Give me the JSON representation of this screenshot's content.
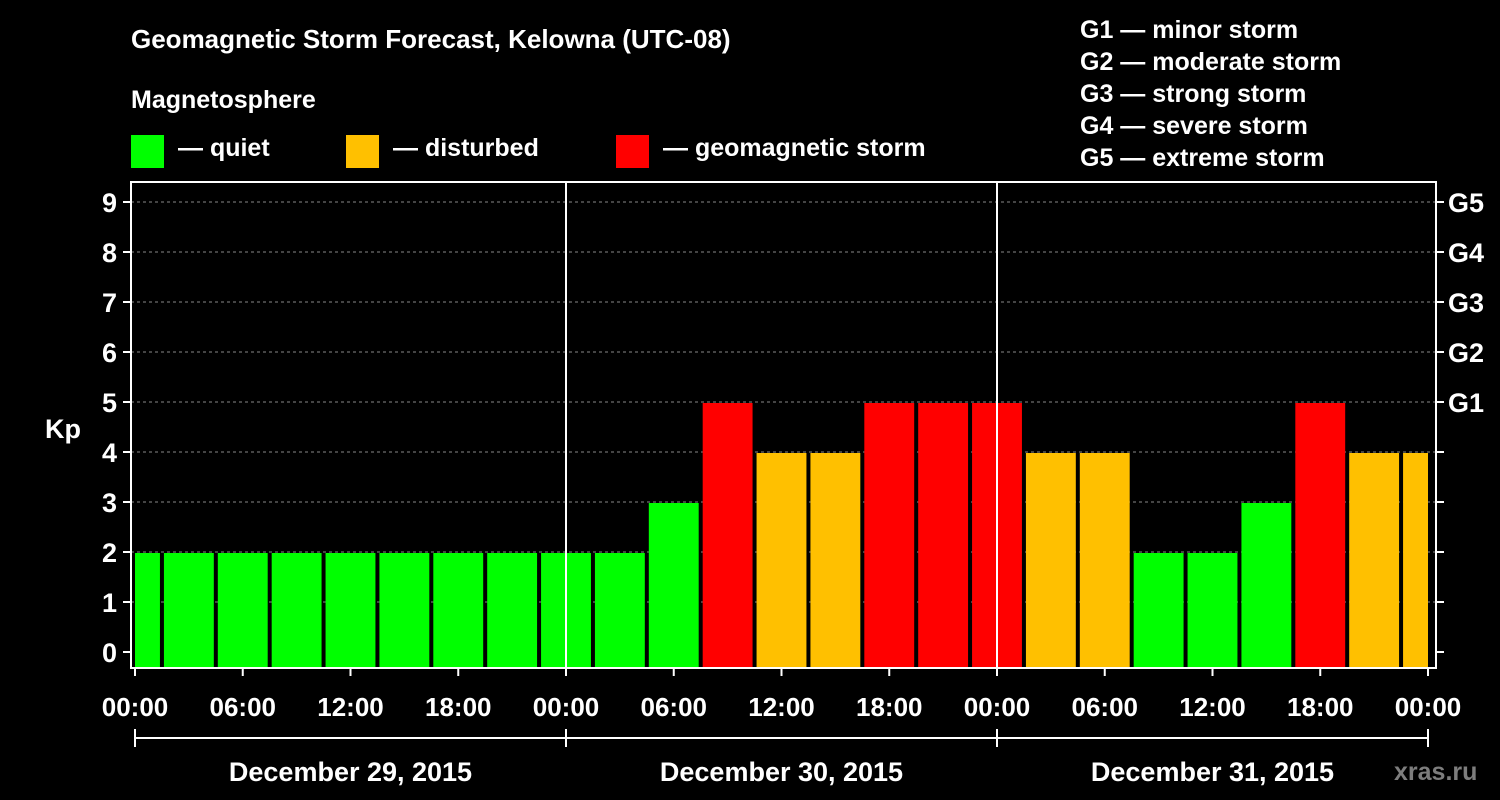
{
  "header": {
    "title": "Geomagnetic Storm Forecast, Kelowna (UTC-08)",
    "magnetosphere_heading": "Magnetosphere"
  },
  "legend": [
    {
      "label": "— quiet",
      "color": "#00ff00"
    },
    {
      "label": "— disturbed",
      "color": "#ffc000"
    },
    {
      "label": "— geomagnetic storm",
      "color": "#ff0000"
    }
  ],
  "storm_scale": [
    "G1 — minor storm",
    "G2 — moderate storm",
    "G3 — strong storm",
    "G4 — severe storm",
    "G5 — extreme storm"
  ],
  "credit": "xras.ru",
  "colors": {
    "quiet": "#00ff00",
    "disturbed": "#ffc000",
    "storm": "#ff0000",
    "grid": "#888888",
    "axis": "#ffffff"
  },
  "chart_data": {
    "type": "bar",
    "ylabel": "Kp",
    "ylim": [
      0,
      9
    ],
    "yticks": [
      0,
      1,
      2,
      3,
      4,
      5,
      6,
      7,
      8,
      9
    ],
    "right_axis_labels": [
      {
        "kp": 5,
        "label": "G1"
      },
      {
        "kp": 6,
        "label": "G2"
      },
      {
        "kp": 7,
        "label": "G3"
      },
      {
        "kp": 8,
        "label": "G4"
      },
      {
        "kp": 9,
        "label": "G5"
      }
    ],
    "grid": "horizontal dashed",
    "x_tick_labels": [
      "00:00",
      "06:00",
      "12:00",
      "18:00",
      "00:00",
      "06:00",
      "12:00",
      "18:00",
      "00:00",
      "06:00",
      "12:00",
      "18:00",
      "00:00"
    ],
    "x_tick_hours": [
      0,
      6,
      12,
      18,
      24,
      30,
      36,
      42,
      48,
      54,
      60,
      66,
      72
    ],
    "days": [
      "December 29, 2015",
      "December 30, 2015",
      "December 31, 2015"
    ],
    "bars": [
      {
        "start": 0,
        "end": 1.5,
        "kp": 2,
        "level": "quiet"
      },
      {
        "start": 1.5,
        "end": 4.5,
        "kp": 2,
        "level": "quiet"
      },
      {
        "start": 4.5,
        "end": 7.5,
        "kp": 2,
        "level": "quiet"
      },
      {
        "start": 7.5,
        "end": 10.5,
        "kp": 2,
        "level": "quiet"
      },
      {
        "start": 10.5,
        "end": 13.5,
        "kp": 2,
        "level": "quiet"
      },
      {
        "start": 13.5,
        "end": 16.5,
        "kp": 2,
        "level": "quiet"
      },
      {
        "start": 16.5,
        "end": 19.5,
        "kp": 2,
        "level": "quiet"
      },
      {
        "start": 19.5,
        "end": 22.5,
        "kp": 2,
        "level": "quiet"
      },
      {
        "start": 22.5,
        "end": 25.5,
        "kp": 2,
        "level": "quiet"
      },
      {
        "start": 25.5,
        "end": 28.5,
        "kp": 2,
        "level": "quiet"
      },
      {
        "start": 28.5,
        "end": 31.5,
        "kp": 3,
        "level": "quiet"
      },
      {
        "start": 31.5,
        "end": 34.5,
        "kp": 5,
        "level": "storm"
      },
      {
        "start": 34.5,
        "end": 37.5,
        "kp": 4,
        "level": "disturbed"
      },
      {
        "start": 37.5,
        "end": 40.5,
        "kp": 4,
        "level": "disturbed"
      },
      {
        "start": 40.5,
        "end": 43.5,
        "kp": 5,
        "level": "storm"
      },
      {
        "start": 43.5,
        "end": 46.5,
        "kp": 5,
        "level": "storm"
      },
      {
        "start": 46.5,
        "end": 49.5,
        "kp": 5,
        "level": "storm"
      },
      {
        "start": 49.5,
        "end": 52.5,
        "kp": 4,
        "level": "disturbed"
      },
      {
        "start": 52.5,
        "end": 55.5,
        "kp": 4,
        "level": "disturbed"
      },
      {
        "start": 55.5,
        "end": 58.5,
        "kp": 2,
        "level": "quiet"
      },
      {
        "start": 58.5,
        "end": 61.5,
        "kp": 2,
        "level": "quiet"
      },
      {
        "start": 61.5,
        "end": 64.5,
        "kp": 3,
        "level": "quiet"
      },
      {
        "start": 64.5,
        "end": 67.5,
        "kp": 5,
        "level": "storm"
      },
      {
        "start": 67.5,
        "end": 70.5,
        "kp": 4,
        "level": "disturbed"
      },
      {
        "start": 70.5,
        "end": 72,
        "kp": 4,
        "level": "disturbed"
      }
    ]
  }
}
